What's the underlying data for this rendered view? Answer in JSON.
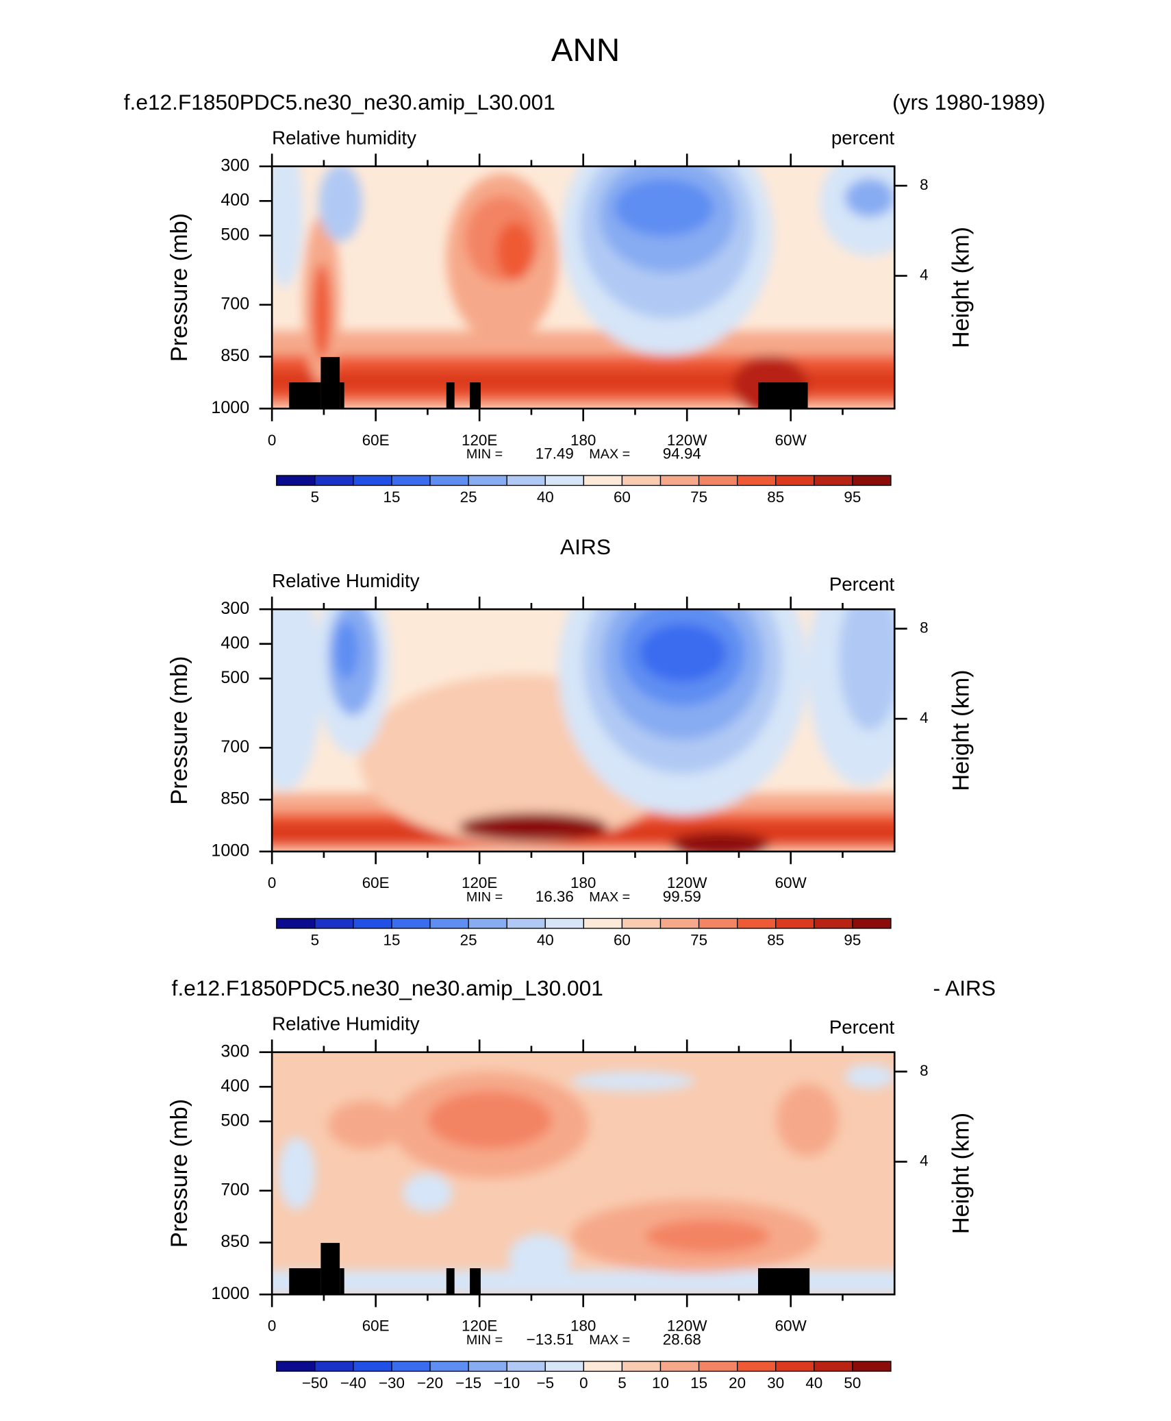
{
  "title": "ANN",
  "chart_data": [
    {
      "type": "contour",
      "title_left": "f.e12.F1850PDC5.ne30_ne30.amip_L30.001",
      "title_right": "(yrs 1980-1989)",
      "subtitle_left": "Relative humidity",
      "subtitle_right": "percent",
      "ylabel": "Pressure (mb)",
      "y2label": "Height (km)",
      "xlim": [
        0,
        360
      ],
      "ylim": [
        1000,
        300
      ],
      "xticks": [
        0,
        {
          "value": 60,
          "label": "60E"
        },
        {
          "value": 120,
          "label": "120E"
        },
        180,
        {
          "value": 240,
          "label": "120W"
        },
        {
          "value": 300,
          "label": "60W"
        }
      ],
      "yticks": [
        300,
        400,
        500,
        700,
        850,
        1000
      ],
      "y2ticks": [
        4,
        8
      ],
      "min_text": "MIN =",
      "min": 17.49,
      "max_text": "MAX =",
      "max": 94.94,
      "colorbar": {
        "colors": [
          "#0b0b90",
          "#1a32c8",
          "#2050e6",
          "#3a6cf0",
          "#5f8ef2",
          "#88acf2",
          "#b0c9f4",
          "#d6e5f8",
          "#fde9d8",
          "#f9cbb0",
          "#f6a98a",
          "#f38464",
          "#ef5a36",
          "#dc3a1e",
          "#b82314",
          "#8c0c0a"
        ],
        "ticks": [
          5,
          15,
          25,
          40,
          60,
          75,
          85,
          95
        ]
      }
    },
    {
      "type": "contour",
      "title": "AIRS",
      "subtitle_left": "Relative Humidity",
      "subtitle_right": "Percent",
      "ylabel": "Pressure (mb)",
      "y2label": "Height (km)",
      "xlim": [
        0,
        360
      ],
      "ylim": [
        1000,
        300
      ],
      "xticks": [
        0,
        {
          "value": 60,
          "label": "60E"
        },
        {
          "value": 120,
          "label": "120E"
        },
        180,
        {
          "value": 240,
          "label": "120W"
        },
        {
          "value": 300,
          "label": "60W"
        }
      ],
      "yticks": [
        300,
        400,
        500,
        700,
        850,
        1000
      ],
      "y2ticks": [
        4,
        8
      ],
      "min_text": "MIN =",
      "min": 16.36,
      "max_text": "MAX =",
      "max": 99.59,
      "colorbar": {
        "colors": [
          "#0b0b90",
          "#1a32c8",
          "#2050e6",
          "#3a6cf0",
          "#5f8ef2",
          "#88acf2",
          "#b0c9f4",
          "#d6e5f8",
          "#fde9d8",
          "#f9cbb0",
          "#f6a98a",
          "#f38464",
          "#ef5a36",
          "#dc3a1e",
          "#b82314",
          "#8c0c0a"
        ],
        "ticks": [
          5,
          15,
          25,
          40,
          60,
          75,
          85,
          95
        ]
      }
    },
    {
      "type": "contour",
      "title_left": "f.e12.F1850PDC5.ne30_ne30.amip_L30.001",
      "title_right": "- AIRS",
      "subtitle_left": "Relative Humidity",
      "subtitle_right": "Percent",
      "ylabel": "Pressure (mb)",
      "y2label": "Height (km)",
      "xlim": [
        0,
        360
      ],
      "ylim": [
        1000,
        300
      ],
      "xticks": [
        0,
        {
          "value": 60,
          "label": "60E"
        },
        {
          "value": 120,
          "label": "120E"
        },
        180,
        {
          "value": 240,
          "label": "120W"
        },
        {
          "value": 300,
          "label": "60W"
        }
      ],
      "yticks": [
        300,
        400,
        500,
        700,
        850,
        1000
      ],
      "y2ticks": [
        4,
        8
      ],
      "min_text": "MIN =",
      "min": {
        "value": -13.51,
        "label": "−13.51"
      },
      "max_text": "MAX =",
      "max": 28.68,
      "colorbar": {
        "colors": [
          "#0b0b90",
          "#1a32c8",
          "#2050e6",
          "#3a6cf0",
          "#5f8ef2",
          "#88acf2",
          "#b0c9f4",
          "#d6e5f8",
          "#fde9d8",
          "#f9cbb0",
          "#f6a98a",
          "#f38464",
          "#ef5a36",
          "#dc3a1e",
          "#b82314",
          "#8c0c0a"
        ],
        "ticks": [
          {
            "value": -50,
            "label": "−50"
          },
          {
            "value": -40,
            "label": "−40"
          },
          {
            "value": -30,
            "label": "−30"
          },
          {
            "value": -20,
            "label": "−20"
          },
          {
            "value": -15,
            "label": "−15"
          },
          {
            "value": -10,
            "label": "−10"
          },
          {
            "value": -5,
            "label": "−5"
          },
          0,
          5,
          10,
          15,
          20,
          30,
          40,
          50
        ]
      }
    }
  ]
}
